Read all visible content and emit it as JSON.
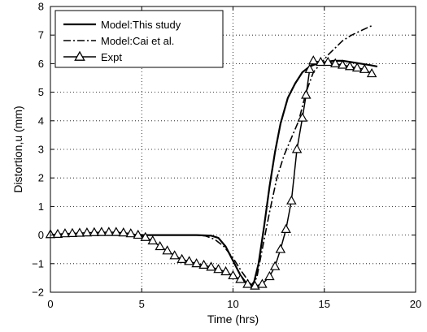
{
  "chart_data": {
    "type": "line",
    "title": "",
    "xlabel": "Time (hrs)",
    "ylabel": "Distortion,u (mm)",
    "xlim": [
      0,
      20
    ],
    "ylim": [
      -2,
      8
    ],
    "xticks": [
      0,
      5,
      10,
      15,
      20
    ],
    "yticks": [
      -2,
      -1,
      0,
      1,
      2,
      3,
      4,
      5,
      6,
      7,
      8
    ],
    "grid": "dotted",
    "legend_position": "top-left",
    "series": [
      {
        "name": "Model:This study",
        "style": "solid",
        "marker": "none",
        "x": [
          0,
          2,
          4,
          6,
          7,
          8,
          8.8,
          9.2,
          9.6,
          10.0,
          10.4,
          10.8,
          11.1,
          11.4,
          11.7,
          12.0,
          12.3,
          12.6,
          13.0,
          13.4,
          13.8,
          14.2,
          14.6,
          15.0,
          15.5,
          16.0,
          16.5,
          17.0,
          17.5,
          17.9
        ],
        "y": [
          0,
          0,
          0,
          0,
          0,
          0,
          -0.02,
          -0.1,
          -0.4,
          -0.9,
          -1.4,
          -1.75,
          -1.78,
          -1.0,
          0.3,
          1.7,
          2.9,
          3.9,
          4.8,
          5.3,
          5.7,
          5.9,
          6.0,
          6.05,
          6.1,
          6.1,
          6.05,
          6.0,
          5.95,
          5.9
        ]
      },
      {
        "name": "Model:Cai et al.",
        "style": "dashdot",
        "marker": "none",
        "x": [
          0,
          2,
          4,
          6,
          7,
          8,
          8.5,
          9.0,
          9.5,
          10.0,
          10.5,
          11.0,
          11.3,
          11.6,
          12.0,
          12.4,
          12.8,
          13.2,
          13.6,
          14.0,
          14.4,
          14.8,
          15.2,
          15.6,
          16.0,
          16.5,
          17.0,
          17.5,
          17.7
        ],
        "y": [
          0,
          0,
          0,
          0,
          0,
          0,
          -0.03,
          -0.15,
          -0.4,
          -0.8,
          -1.3,
          -1.75,
          -1.5,
          -0.5,
          0.8,
          2.0,
          2.8,
          3.4,
          4.0,
          5.0,
          5.7,
          6.0,
          6.3,
          6.55,
          6.8,
          7.0,
          7.15,
          7.3,
          7.35
        ]
      },
      {
        "name": "Expt",
        "style": "solid",
        "marker": "triangle",
        "x": [
          0,
          0.4,
          0.8,
          1.2,
          1.6,
          2.0,
          2.4,
          2.8,
          3.2,
          3.6,
          4.0,
          4.4,
          4.8,
          5.2,
          5.6,
          6.0,
          6.4,
          6.8,
          7.2,
          7.6,
          8.0,
          8.4,
          8.8,
          9.2,
          9.6,
          10.0,
          10.4,
          10.8,
          11.2,
          11.6,
          12.0,
          12.3,
          12.6,
          12.9,
          13.2,
          13.5,
          13.8,
          14.0,
          14.2,
          14.4,
          14.8,
          15.2,
          15.6,
          16.0,
          16.4,
          16.8,
          17.2,
          17.6
        ],
        "y": [
          0.02,
          0.03,
          0.05,
          0.06,
          0.07,
          0.08,
          0.09,
          0.1,
          0.1,
          0.1,
          0.08,
          0.05,
          0.0,
          -0.08,
          -0.2,
          -0.4,
          -0.55,
          -0.72,
          -0.85,
          -0.92,
          -1.0,
          -1.05,
          -1.12,
          -1.2,
          -1.28,
          -1.42,
          -1.55,
          -1.72,
          -1.78,
          -1.72,
          -1.45,
          -1.1,
          -0.5,
          0.2,
          1.2,
          3.0,
          4.1,
          4.9,
          5.8,
          6.1,
          6.05,
          6.05,
          6.0,
          5.95,
          5.9,
          5.85,
          5.8,
          5.65
        ]
      }
    ]
  }
}
